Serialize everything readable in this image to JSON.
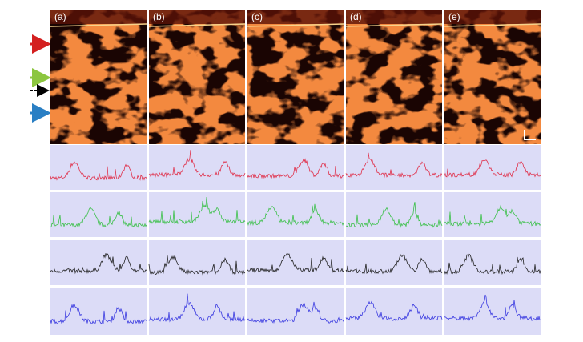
{
  "panels": [
    {
      "label": "(a)"
    },
    {
      "label": "(b)"
    },
    {
      "label": "(c)"
    },
    {
      "label": "(d)"
    },
    {
      "label": "(e)"
    }
  ]
}
